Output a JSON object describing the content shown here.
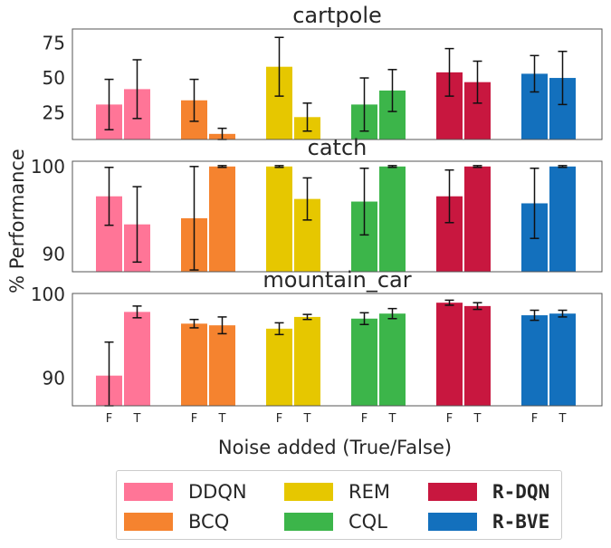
{
  "chart_data": {
    "type": "bar",
    "xlabel": "Noise added (True/False)",
    "ylabel": "% Performance",
    "noise_ticks": [
      "F",
      "T"
    ],
    "grid": false,
    "legend_placement": "bottom",
    "methods": [
      {
        "name": "DDQN",
        "color": "#ff7597",
        "mono": false
      },
      {
        "name": "BCQ",
        "color": "#f5832f",
        "mono": false
      },
      {
        "name": "REM",
        "color": "#e6c700",
        "mono": false
      },
      {
        "name": "CQL",
        "color": "#3cb54a",
        "mono": false
      },
      {
        "name": "R-DQN",
        "color": "#c8173f",
        "mono": true
      },
      {
        "name": "R-BVE",
        "color": "#1370bd",
        "mono": true
      }
    ],
    "panels": [
      {
        "title": "cartpole",
        "ylim": [
          6,
          85
        ],
        "yticks": [
          25,
          50,
          75
        ],
        "values": [
          [
            31,
            42
          ],
          [
            34,
            10
          ],
          [
            58,
            22
          ],
          [
            31,
            41
          ],
          [
            54,
            47
          ],
          [
            53,
            50
          ]
        ],
        "errors": [
          [
            18,
            21
          ],
          [
            15,
            4
          ],
          [
            21,
            10
          ],
          [
            19,
            15
          ],
          [
            17,
            15
          ],
          [
            13,
            19
          ]
        ]
      },
      {
        "title": "catch",
        "ylim": [
          88,
          100.6
        ],
        "yticks": [
          90,
          100
        ],
        "values": [
          [
            96.6,
            93.4
          ],
          [
            94.1,
            100
          ],
          [
            100,
            96.3
          ],
          [
            96.0,
            100
          ],
          [
            96.6,
            100
          ],
          [
            95.8,
            100
          ]
        ],
        "errors": [
          [
            3.3,
            4.3
          ],
          [
            5.9,
            0.1
          ],
          [
            0.1,
            2.4
          ],
          [
            3.8,
            0.1
          ],
          [
            3.0,
            0.1
          ],
          [
            4.0,
            0.1
          ]
        ]
      },
      {
        "title": "mountain_car",
        "ylim": [
          86.7,
          100.1
        ],
        "yticks": [
          90,
          100
        ],
        "values": [
          [
            90.3,
            97.9
          ],
          [
            96.5,
            96.3
          ],
          [
            95.9,
            97.3
          ],
          [
            97.1,
            97.7
          ],
          [
            99.0,
            98.6
          ],
          [
            97.5,
            97.7
          ]
        ],
        "errors": [
          [
            4.0,
            0.7
          ],
          [
            0.5,
            1.0
          ],
          [
            0.7,
            0.3
          ],
          [
            0.7,
            0.6
          ],
          [
            0.3,
            0.4
          ],
          [
            0.6,
            0.4
          ]
        ]
      }
    ]
  }
}
